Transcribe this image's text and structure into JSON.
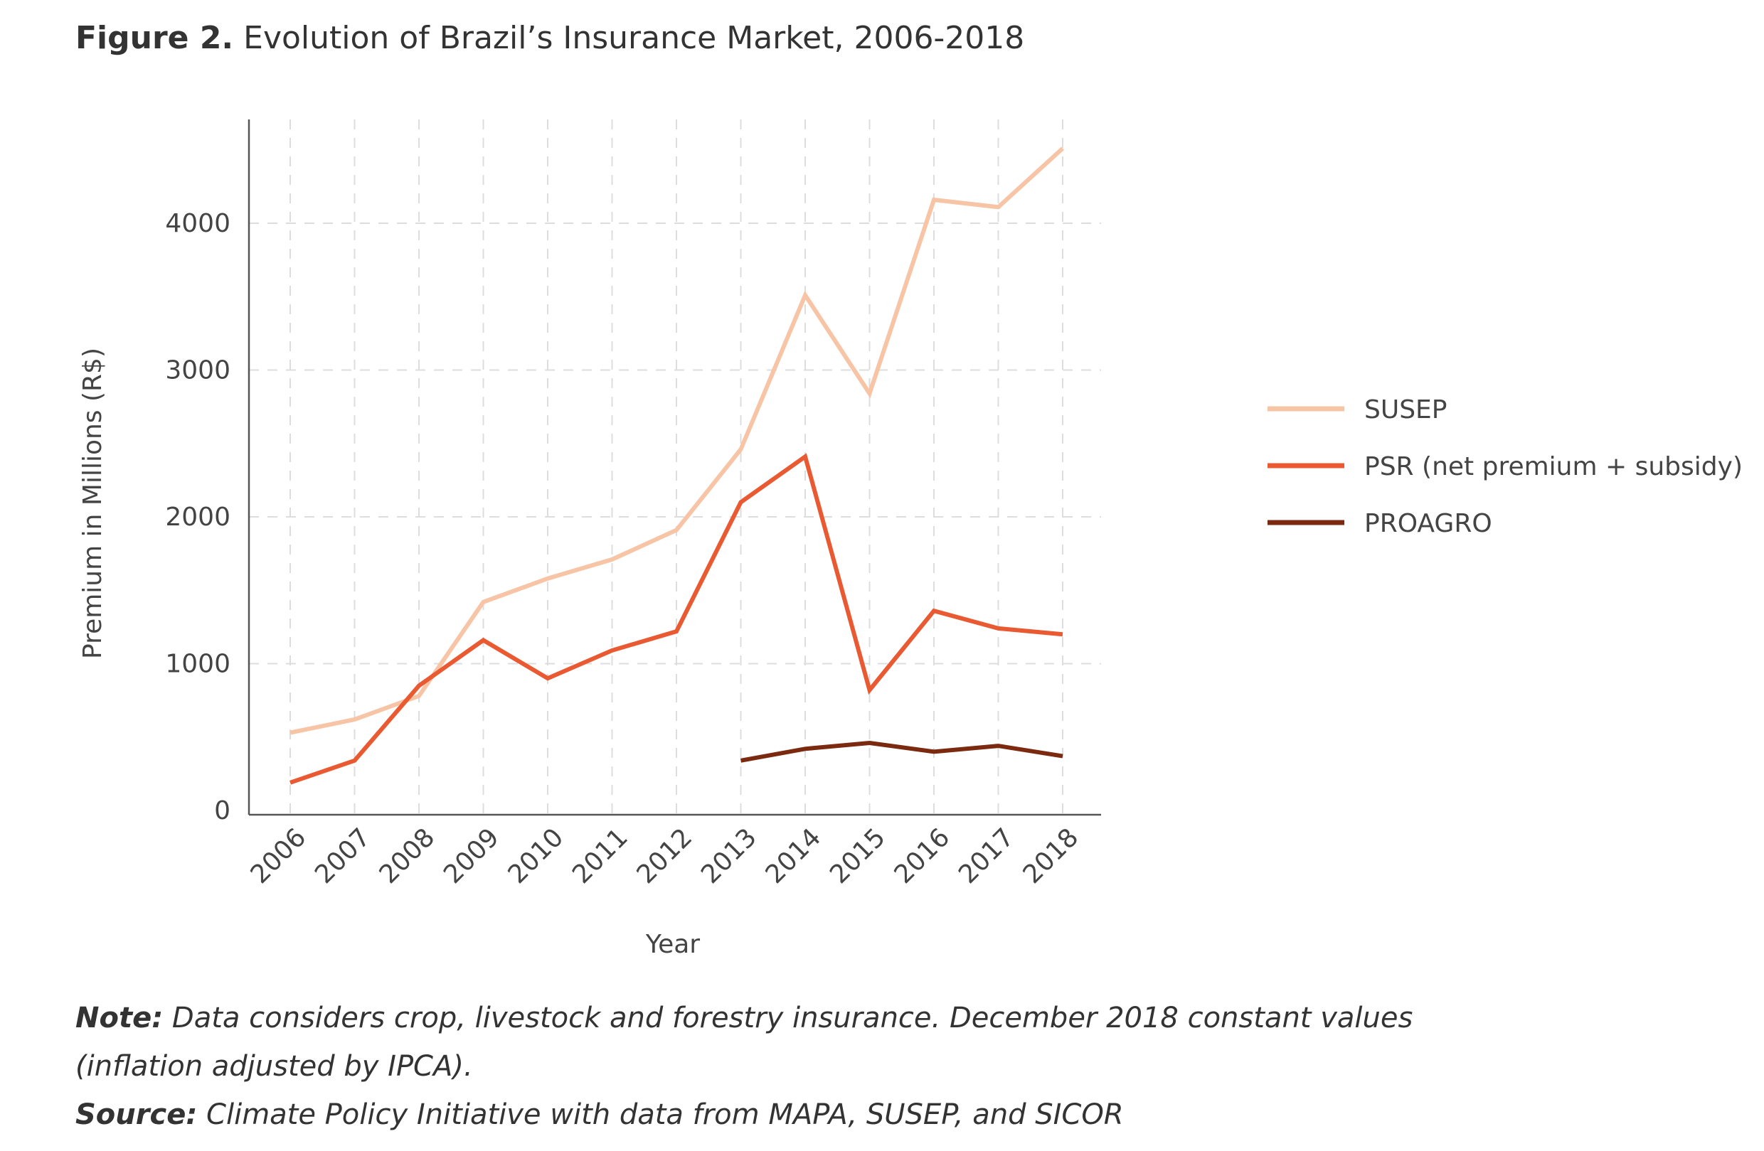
{
  "figure": {
    "label": "Figure 2.",
    "title": "Evolution of Brazil’s Insurance Market, 2006-2018"
  },
  "chart_data": {
    "type": "line",
    "x": [
      "2006",
      "2007",
      "2008",
      "2009",
      "2010",
      "2011",
      "2012",
      "2013",
      "2014",
      "2015",
      "2016",
      "2017",
      "2018"
    ],
    "xlabel": "Year",
    "ylabel": "Premium in Millions (R$)",
    "ylim": [
      0,
      4600
    ],
    "yticks": [
      0,
      1000,
      2000,
      3000,
      4000
    ],
    "grid": true,
    "legend_position": "right",
    "series": [
      {
        "name": "SUSEP",
        "color": "#f7c4a5",
        "values": [
          530,
          620,
          780,
          1420,
          1580,
          1710,
          1910,
          2460,
          3510,
          2840,
          4160,
          4110,
          4510
        ]
      },
      {
        "name": "PSR (net premium + subsidy)",
        "color": "#ea5a32",
        "values": [
          190,
          340,
          850,
          1160,
          900,
          1090,
          1220,
          2100,
          2410,
          820,
          1360,
          1240,
          1200
        ]
      },
      {
        "name": "PROAGRO",
        "color": "#7b2a10",
        "values": [
          null,
          null,
          null,
          null,
          null,
          null,
          null,
          340,
          420,
          460,
          400,
          440,
          370
        ]
      }
    ]
  },
  "notes": {
    "note_label": "Note:",
    "note_text": " Data considers crop, livestock and forestry insurance. December 2018 constant values",
    "note_text_2": "(inflation adjusted by IPCA).",
    "source_label": "Source:",
    "source_text": " Climate Policy Initiative with data from MAPA, SUSEP, and SICOR"
  }
}
